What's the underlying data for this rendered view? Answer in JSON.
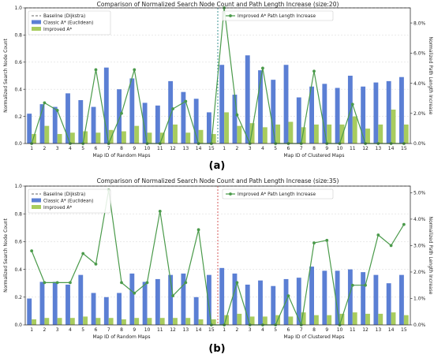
{
  "chart_data": [
    {
      "type": "bar",
      "panel_label": "(a)",
      "title": "Comparison of Normalized Search Node Count and Path Length Increase (size:20)",
      "ylabel": "Normalized Search Node Count",
      "y2label": "Normalized Path Length Increase",
      "xlabel_left": "Map ID of Random Maps",
      "xlabel_right": "Map ID of Clustered Maps",
      "categories": [
        "1",
        "2",
        "3",
        "4",
        "5",
        "6",
        "7",
        "8",
        "9",
        "10",
        "11",
        "12",
        "13",
        "14",
        "15"
      ],
      "ylim": [
        0,
        1.0
      ],
      "yticks": [
        0.0,
        0.2,
        0.4,
        0.6,
        0.8,
        1.0
      ],
      "y2lim": [
        0,
        9
      ],
      "y2ticks": [
        0,
        2,
        4,
        6,
        8
      ],
      "y2tick_labels": [
        "0.0%",
        "2.0%",
        "4.0%",
        "6.0%",
        "8.0%"
      ],
      "baseline_value": 1.0,
      "legend_left": [
        "Baseline (Dijkstra)",
        "Classic A* (Euclidean)",
        "Improved A*"
      ],
      "legend_right": "Improved A* Path Length Increase",
      "series": {
        "classic_random": [
          0.22,
          0.29,
          0.27,
          0.37,
          0.32,
          0.27,
          0.56,
          0.4,
          0.48,
          0.3,
          0.28,
          0.46,
          0.38,
          0.33,
          0.23
        ],
        "improved_random": [
          0.07,
          0.13,
          0.07,
          0.08,
          0.09,
          0.08,
          0.1,
          0.09,
          0.13,
          0.08,
          0.08,
          0.14,
          0.08,
          0.1,
          0.07
        ],
        "pli_random": [
          0,
          2.7,
          2.2,
          0,
          0,
          4.9,
          0,
          2.0,
          4.9,
          0,
          0,
          2.3,
          2.8,
          0,
          0
        ],
        "classic_clustered": [
          0.58,
          0.36,
          0.65,
          0.54,
          0.47,
          0.58,
          0.34,
          0.42,
          0.44,
          0.41,
          0.5,
          0.42,
          0.45,
          0.46,
          0.49
        ],
        "improved_clustered": [
          0.23,
          0.13,
          0.15,
          0.12,
          0.14,
          0.16,
          0.12,
          0.14,
          0.14,
          0.14,
          0.2,
          0.11,
          0.14,
          0.25,
          0.14
        ],
        "pli_clustered": [
          9.0,
          1.9,
          0,
          5.0,
          0,
          0,
          0,
          4.8,
          0,
          0,
          2.6,
          0,
          0,
          0,
          0
        ]
      }
    },
    {
      "type": "bar",
      "panel_label": "(b)",
      "title": "Comparison of Normalized Search Node Count and Path Length Increase (size:35)",
      "ylabel": "Normalized Search Node Count",
      "y2label": "Normalized Path Length Increase",
      "xlabel_left": "Map ID of Random Maps",
      "xlabel_right": "Map ID of Clustered Maps",
      "categories": [
        "1",
        "2",
        "3",
        "4",
        "5",
        "6",
        "7",
        "8",
        "9",
        "10",
        "11",
        "12",
        "13",
        "14",
        "15"
      ],
      "ylim": [
        0,
        1.0
      ],
      "yticks": [
        0.0,
        0.2,
        0.4,
        0.6,
        0.8,
        1.0
      ],
      "y2lim": [
        0,
        5.25
      ],
      "y2ticks": [
        0,
        1,
        2,
        3,
        4,
        5
      ],
      "y2tick_labels": [
        "0.0%",
        "1.0%",
        "2.0%",
        "3.0%",
        "4.0%",
        "5.0%"
      ],
      "baseline_value": 1.0,
      "legend_left": [
        "Baseline (Dijkstra)",
        "Classic A* (Euclidean)",
        "Improved A*"
      ],
      "legend_right": "Improved A* Path Length Increase",
      "series": {
        "classic_random": [
          0.19,
          0.31,
          0.31,
          0.29,
          0.36,
          0.23,
          0.2,
          0.23,
          0.37,
          0.31,
          0.33,
          0.36,
          0.37,
          0.2,
          0.36
        ],
        "improved_random": [
          0.04,
          0.05,
          0.05,
          0.05,
          0.06,
          0.05,
          0.05,
          0.04,
          0.05,
          0.05,
          0.05,
          0.05,
          0.05,
          0.04,
          0.04
        ],
        "pli_random": [
          2.8,
          1.6,
          1.6,
          1.6,
          2.7,
          2.3,
          5.1,
          1.6,
          1.2,
          1.6,
          4.3,
          1.1,
          1.6,
          3.6,
          0
        ],
        "classic_clustered": [
          0.41,
          0.37,
          0.29,
          0.32,
          0.28,
          0.33,
          0.34,
          0.42,
          0.39,
          0.39,
          0.4,
          0.38,
          0.36,
          0.3,
          0.36
        ],
        "improved_clustered": [
          0.07,
          0.08,
          0.06,
          0.06,
          0.07,
          0.06,
          0.09,
          0.07,
          0.07,
          0.08,
          0.09,
          0.08,
          0.08,
          0.09,
          0.07
        ],
        "pli_clustered": [
          0,
          1.6,
          0,
          0,
          0,
          1.1,
          0,
          3.1,
          3.2,
          0,
          1.5,
          1.5,
          3.4,
          3.0,
          3.8
        ]
      }
    }
  ]
}
